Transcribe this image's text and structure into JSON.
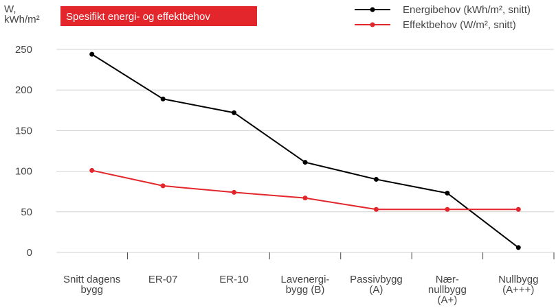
{
  "chart_data": {
    "type": "line",
    "title": "Spesifikt energi- og effektbehov",
    "y_label": "W,\nkWh/m²",
    "categories": [
      "Snitt dagens\nbygg",
      "ER-07",
      "ER-10",
      "Lavenergi-\nbygg (B)",
      "Passivbygg\n(A)",
      "Nær-\nnullbygg\n(A+)",
      "Nullbygg\n(A+++)"
    ],
    "series": [
      {
        "name": "Energibehov (kWh/m², snitt)",
        "color": "#000000",
        "values": [
          244,
          189,
          172,
          111,
          90,
          73,
          6
        ]
      },
      {
        "name": "Effektbehov (W/m², snitt)",
        "color": "#e3262b",
        "values": [
          101,
          82,
          74,
          67,
          53,
          53,
          53
        ]
      }
    ],
    "ylim": [
      0,
      250
    ],
    "yticks": [
      0,
      50,
      100,
      150,
      200,
      250
    ],
    "grid": true,
    "legend": "top-right"
  }
}
